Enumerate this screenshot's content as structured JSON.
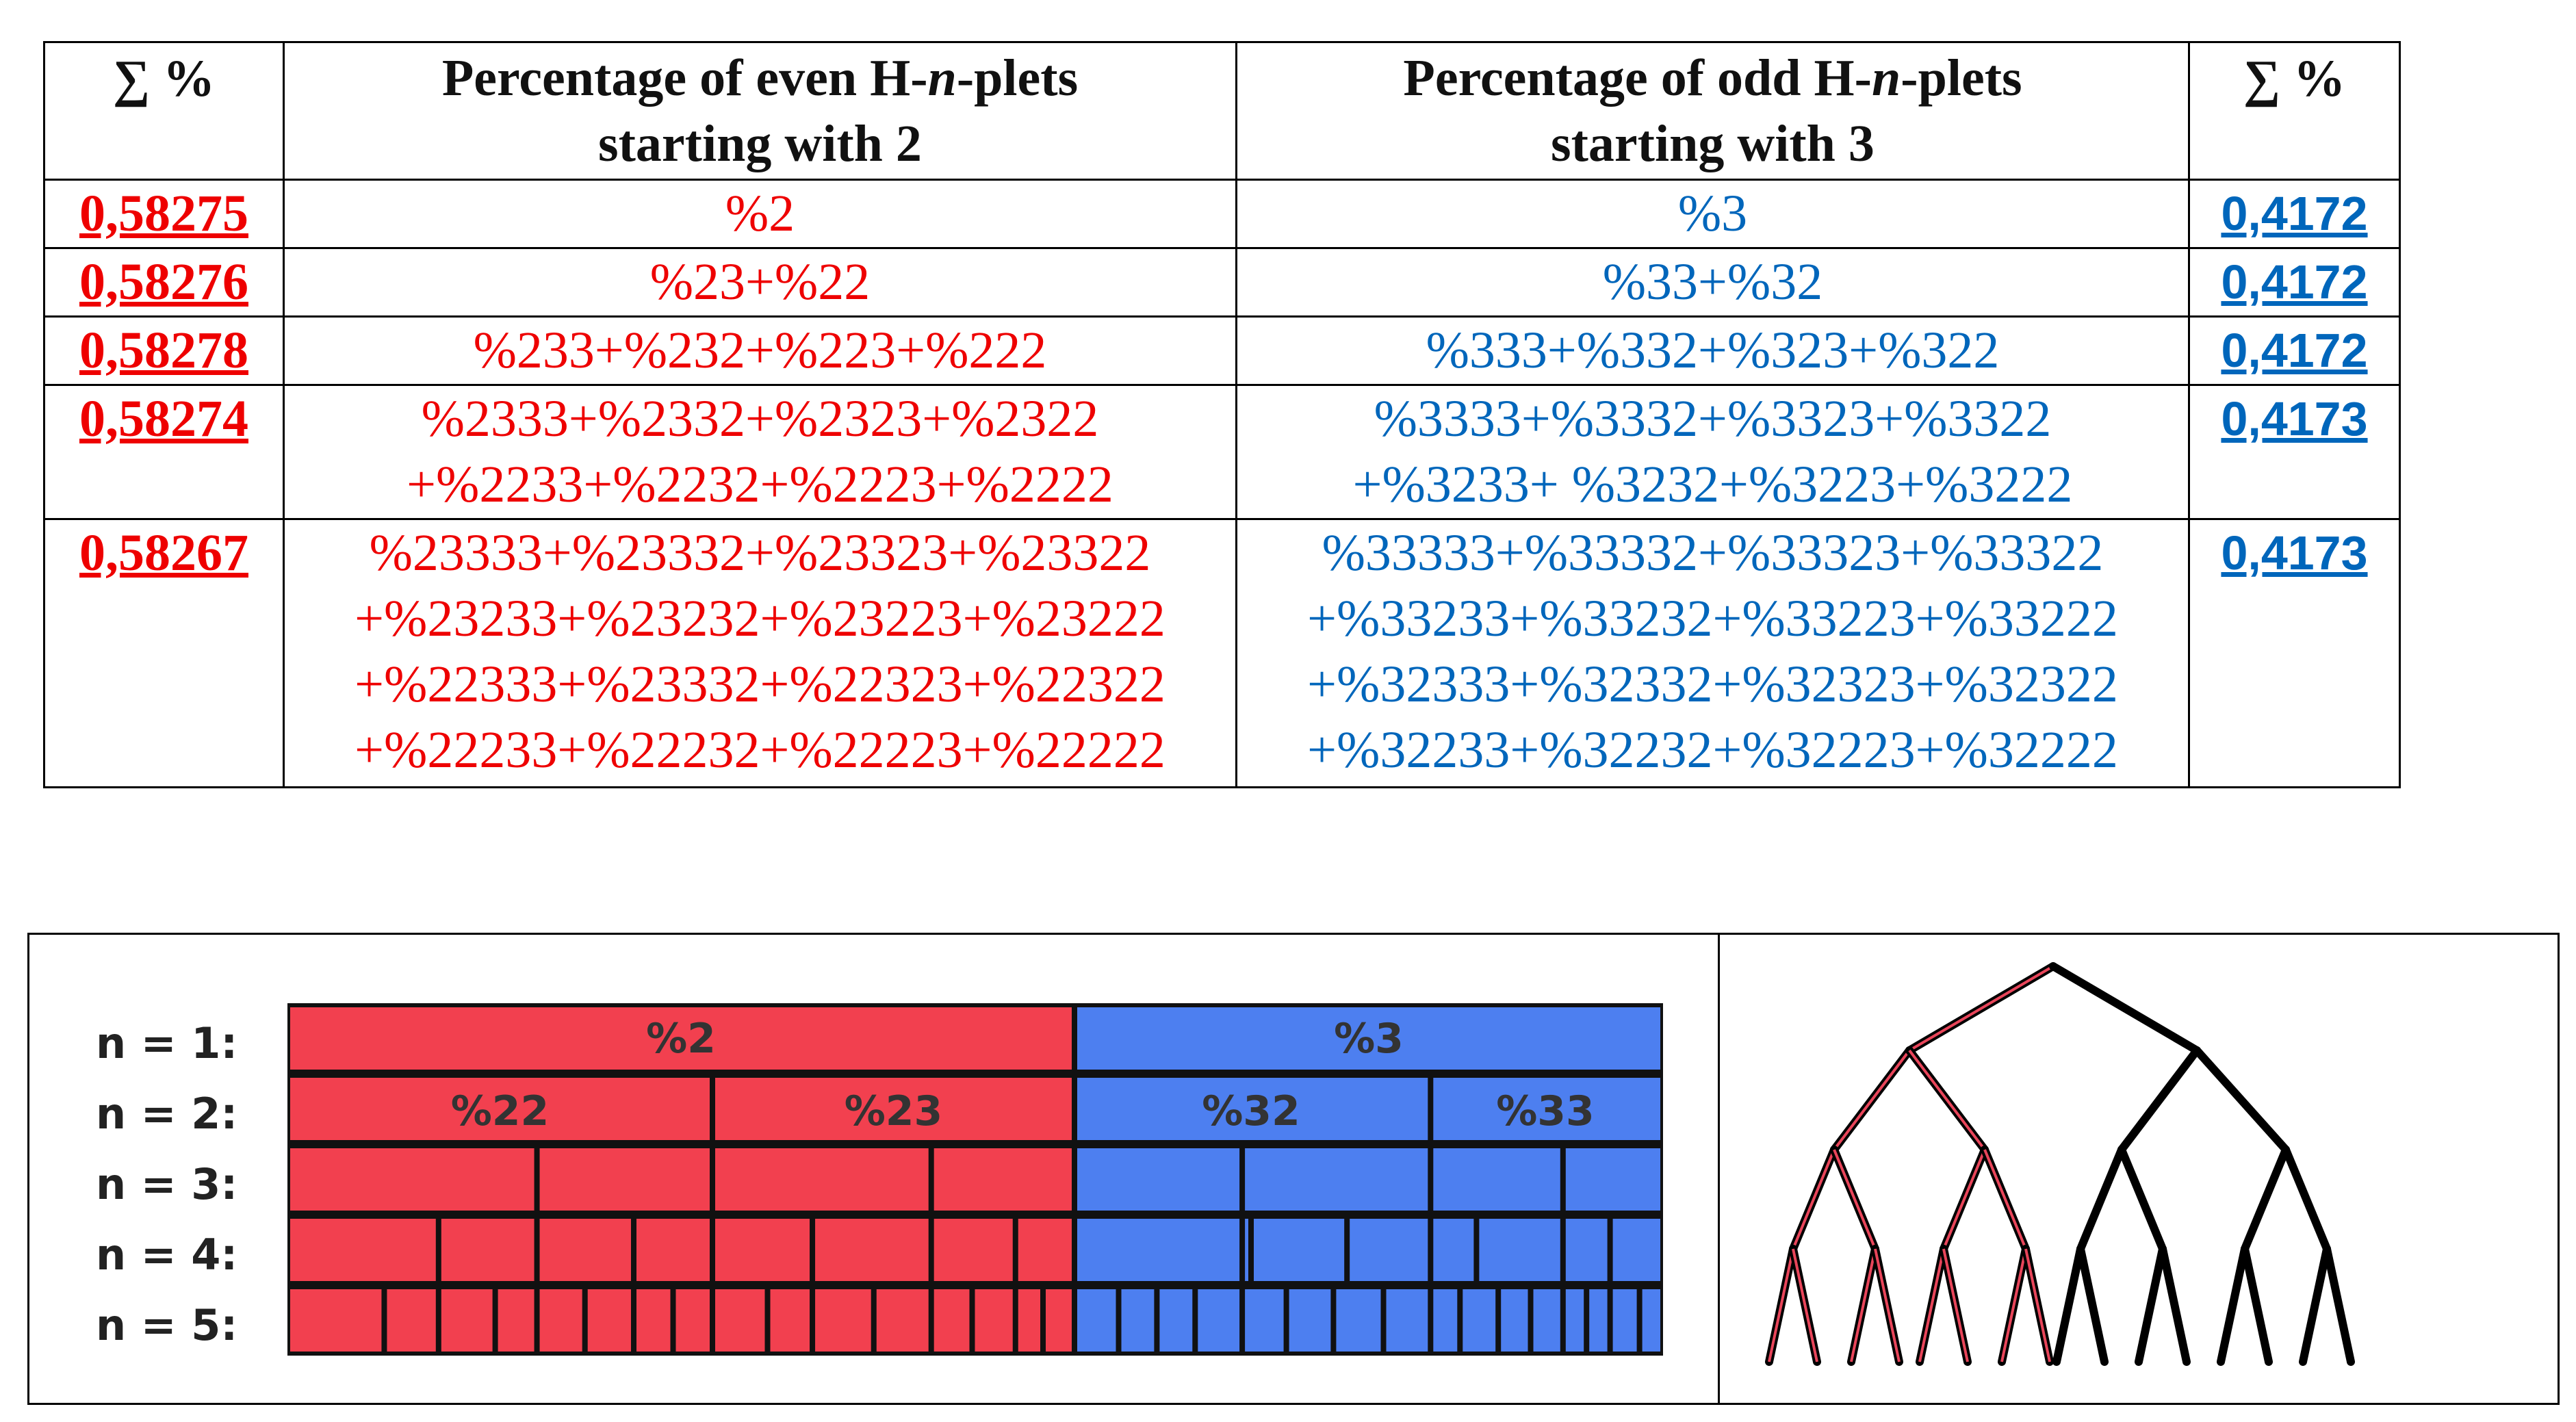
{
  "table": {
    "headers": {
      "sum_left": "∑ %",
      "even_line1_prefix": "Percentage of even H-",
      "even_line1_italic": "n",
      "even_line1_suffix": "-plets",
      "even_line2": "starting with 2",
      "odd_line1_prefix": "Percentage of odd H-",
      "odd_line1_italic": "n",
      "odd_line1_suffix": "-plets",
      "odd_line2": "starting with 3",
      "sum_right": "∑ %"
    },
    "rows": [
      {
        "sum_even": "0,58275",
        "even": [
          "%2"
        ],
        "odd": [
          "%3"
        ],
        "sum_odd": "0,4172"
      },
      {
        "sum_even": "0,58276",
        "even": [
          "%23+%22"
        ],
        "odd": [
          "%33+%32"
        ],
        "sum_odd": "0,4172"
      },
      {
        "sum_even": "0,58278",
        "even": [
          "%233+%232+%223+%222"
        ],
        "odd": [
          "%333+%332+%323+%322"
        ],
        "sum_odd": "0,4172"
      },
      {
        "sum_even": "0,58274",
        "even": [
          "%2333+%2332+%2323+%2322",
          "+%2233+%2232+%2223+%2222"
        ],
        "odd": [
          "%3333+%3332+%3323+%3322",
          "+%3233+ %3232+%3223+%3222"
        ],
        "sum_odd": "0,4173"
      },
      {
        "sum_even": "0,58267",
        "even": [
          "%23333+%23332+%23323+%23322",
          "+%23233+%23232+%23223+%23222",
          "+%22333+%23332+%22323+%22322",
          "+%22233+%22232+%22223+%22222"
        ],
        "odd": [
          "%33333+%33332+%33323+%33322",
          "+%33233+%33232+%33223+%33222",
          "+%32333+%32332+%32323+%32322",
          "+%32233+%32232+%32223+%32222"
        ],
        "sum_odd": "0,4173"
      }
    ]
  },
  "diagram": {
    "levels": [
      "n = 1:",
      "n = 2:",
      "n = 3:",
      "n = 4:",
      "n = 5:"
    ],
    "level1": {
      "even_label": "%2",
      "odd_label": "%3"
    },
    "level2": {
      "labels": [
        "%22",
        "%23",
        "%32",
        "%33"
      ]
    },
    "colors": {
      "even": "#f2404f",
      "odd": "#4d7ff0",
      "outline": "#111111",
      "tree_even": "#e8455a"
    }
  }
}
